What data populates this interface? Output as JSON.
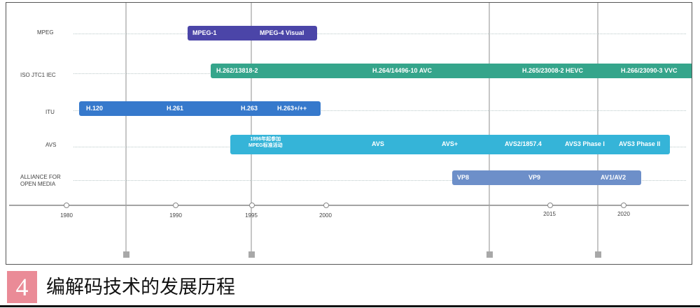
{
  "rows": [
    {
      "label": "MPEG"
    },
    {
      "label": "ISO  JTC1  IEC"
    },
    {
      "label": "ITU"
    },
    {
      "label": "AVS"
    },
    {
      "label": "ALLIANCE FOR\nOPEN MEDIA"
    }
  ],
  "bars": {
    "mpeg": {
      "color": "#4b45a8",
      "labels": [
        "MPEG-1",
        "MPEG-4 Visual"
      ]
    },
    "iso": {
      "color": "#35a58b",
      "labels": [
        "H.262/13818-2",
        "H.264/14496-10 AVC",
        "H.265/23008-2 HEVC",
        "H.266/23090-3 VVC"
      ]
    },
    "itu": {
      "color": "#3679cc",
      "labels": [
        "H.120",
        "H.261",
        "H.263",
        "H.263+/++"
      ]
    },
    "avs": {
      "color": "#35b4d8",
      "labels": [
        "1996年起参加\nMPEG标准活动",
        "AVS",
        "AVS+",
        "AVS2/1857.4",
        "AVS3 Phase I",
        "AVS3 Phase II"
      ]
    },
    "aom": {
      "color": "#6d8fc9",
      "labels": [
        "VP8",
        "VP9",
        "AV1/AV2"
      ]
    }
  },
  "axis": {
    "ticks": [
      "1980",
      "1990",
      "1995",
      "2000",
      "2015",
      "2020"
    ]
  },
  "caption": {
    "number": "4",
    "text": "编解码技术的发展历程",
    "number_color": "#ea8b97"
  }
}
